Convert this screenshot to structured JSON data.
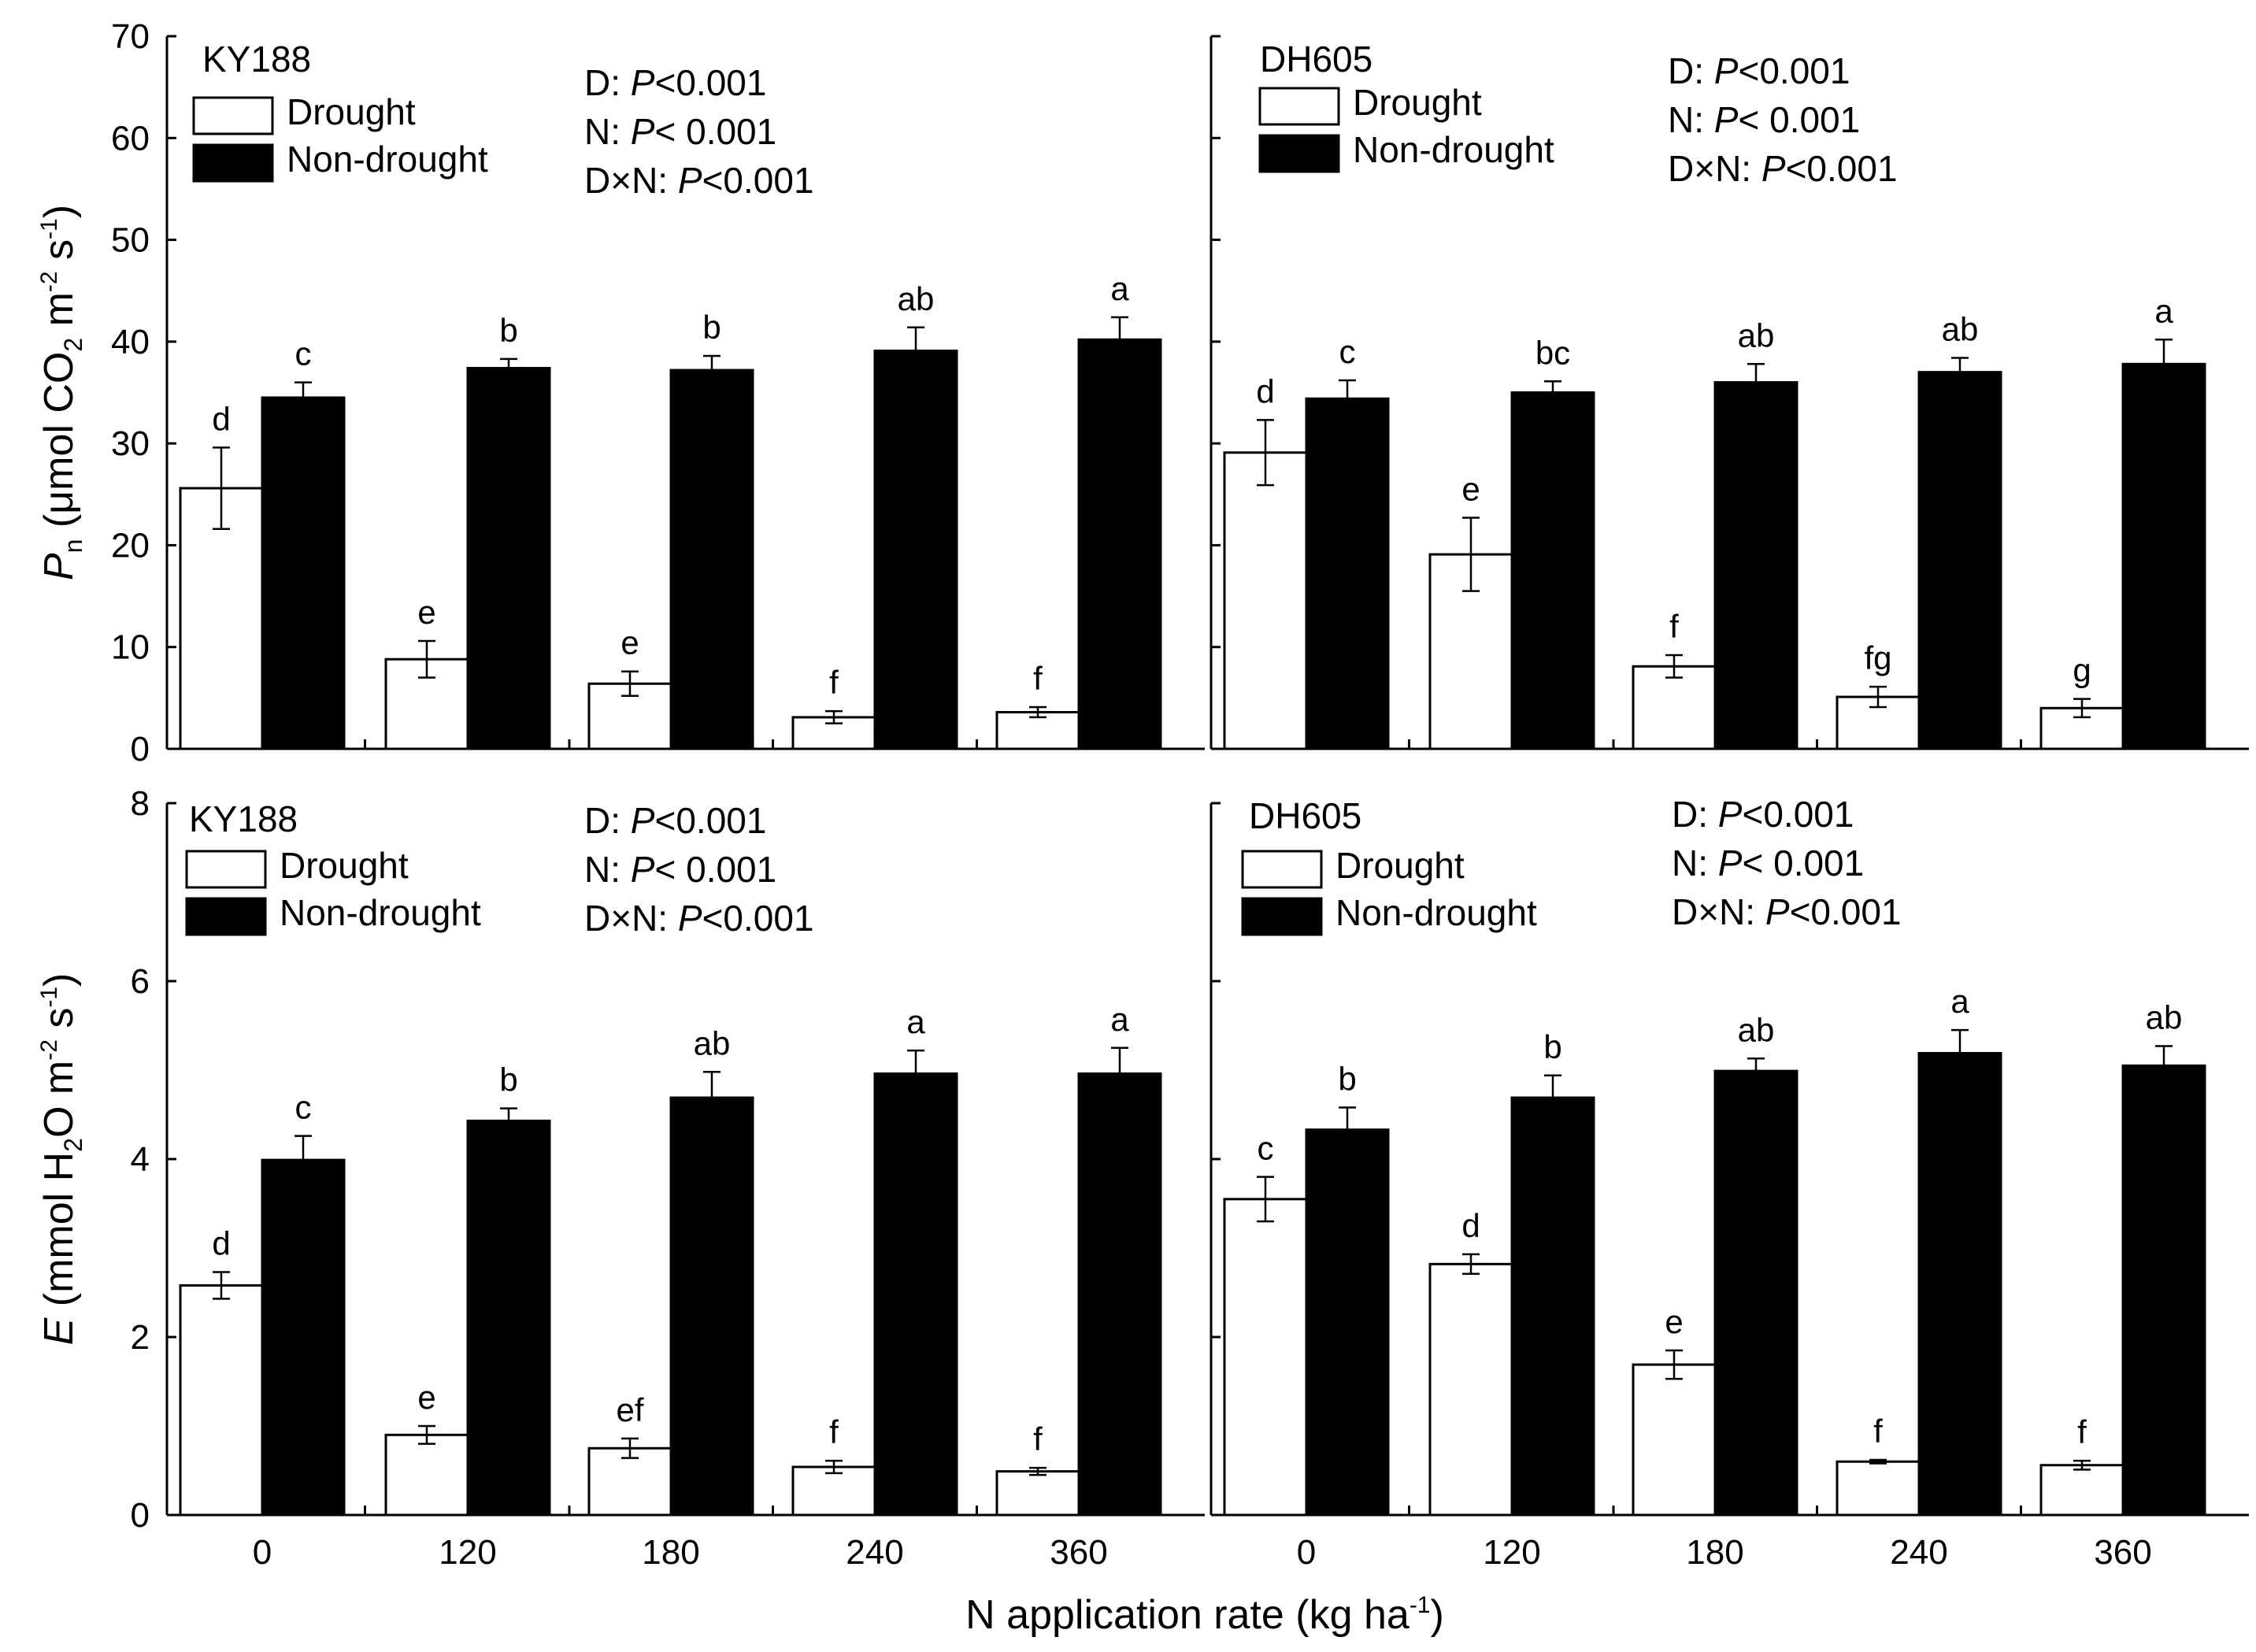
{
  "chart_data": {
    "type": "bar",
    "categories": [
      "0",
      "120",
      "180",
      "240",
      "360"
    ],
    "xlabel_main": "N application rate (kg ha",
    "xlabel_sup": "-1",
    "xlabel_tail": ")",
    "legend": {
      "drought": "Drought",
      "non_drought": "Non-drought"
    },
    "stats": {
      "d_label": "D: ",
      "n_label": "N: ",
      "dn_label": "D×N: ",
      "p": "P",
      "d_value": "<0.001",
      "n_value": "< 0.001",
      "dn_value": "<0.001"
    },
    "rows": [
      {
        "ylabel": {
          "sym": "P",
          "sym_sub": "n",
          "open": " (μmol CO",
          "chem_sub": "2",
          "mid": " m",
          "sup1": "-2",
          "mid2": " s",
          "sup2": "-1",
          "close": ")"
        },
        "ylim": [
          0,
          70
        ],
        "yticks": [
          "0",
          "10",
          "20",
          "30",
          "40",
          "50",
          "60",
          "70"
        ],
        "panels": [
          {
            "label": "KY188",
            "series": [
              {
                "name": "Drought",
                "values": [
                  25.6,
                  8.8,
                  6.4,
                  3.1,
                  3.6
                ],
                "errors": [
                  4.0,
                  1.8,
                  1.2,
                  0.6,
                  0.5
                ],
                "letters": [
                  "d",
                  "e",
                  "e",
                  "f",
                  "f"
                ]
              },
              {
                "name": "Non-drought",
                "values": [
                  34.5,
                  37.4,
                  37.2,
                  39.1,
                  40.2
                ],
                "errors": [
                  1.5,
                  0.9,
                  1.4,
                  2.3,
                  2.2
                ],
                "letters": [
                  "c",
                  "b",
                  "b",
                  "ab",
                  "a"
                ]
              }
            ]
          },
          {
            "label": "DH605",
            "series": [
              {
                "name": "Drought",
                "values": [
                  29.1,
                  19.1,
                  8.1,
                  5.1,
                  4.0
                ],
                "errors": [
                  3.2,
                  3.6,
                  1.1,
                  1.0,
                  0.9
                ],
                "letters": [
                  "d",
                  "e",
                  "f",
                  "fg",
                  "g"
                ]
              },
              {
                "name": "Non-drought",
                "values": [
                  34.4,
                  35.0,
                  36.0,
                  37.0,
                  37.8
                ],
                "errors": [
                  1.8,
                  1.1,
                  1.8,
                  1.4,
                  2.4
                ],
                "letters": [
                  "c",
                  "bc",
                  "ab",
                  "ab",
                  "a"
                ]
              }
            ]
          }
        ]
      },
      {
        "ylabel": {
          "sym": "E",
          "sym_sub": "",
          "open": " (mmol H",
          "chem_sub": "2",
          "mid": "O m",
          "sup1": "-2",
          "mid2": " s",
          "sup2": "-1",
          "close": ")"
        },
        "ylim": [
          0,
          8
        ],
        "yticks": [
          "0",
          "2",
          "4",
          "6",
          "8"
        ],
        "panels": [
          {
            "label": "KY188",
            "series": [
              {
                "name": "Drought",
                "values": [
                  2.58,
                  0.9,
                  0.75,
                  0.54,
                  0.49
                ],
                "errors": [
                  0.15,
                  0.1,
                  0.11,
                  0.07,
                  0.04
                ],
                "letters": [
                  "d",
                  "e",
                  "ef",
                  "f",
                  "f"
                ]
              },
              {
                "name": "Non-drought",
                "values": [
                  3.99,
                  4.43,
                  4.69,
                  4.96,
                  4.96
                ],
                "errors": [
                  0.27,
                  0.14,
                  0.29,
                  0.26,
                  0.29
                ],
                "letters": [
                  "c",
                  "b",
                  "ab",
                  "a",
                  "a"
                ]
              }
            ]
          },
          {
            "label": "DH605",
            "series": [
              {
                "name": "Drought",
                "values": [
                  3.55,
                  2.82,
                  1.69,
                  0.6,
                  0.56
                ],
                "errors": [
                  0.25,
                  0.11,
                  0.16,
                  0.02,
                  0.05
                ],
                "letters": [
                  "c",
                  "d",
                  "e",
                  "f",
                  "f"
                ]
              },
              {
                "name": "Non-drought",
                "values": [
                  4.33,
                  4.69,
                  4.99,
                  5.19,
                  5.05
                ],
                "errors": [
                  0.25,
                  0.25,
                  0.14,
                  0.26,
                  0.22
                ],
                "letters": [
                  "b",
                  "b",
                  "ab",
                  "a",
                  "ab"
                ]
              }
            ]
          }
        ]
      }
    ]
  }
}
